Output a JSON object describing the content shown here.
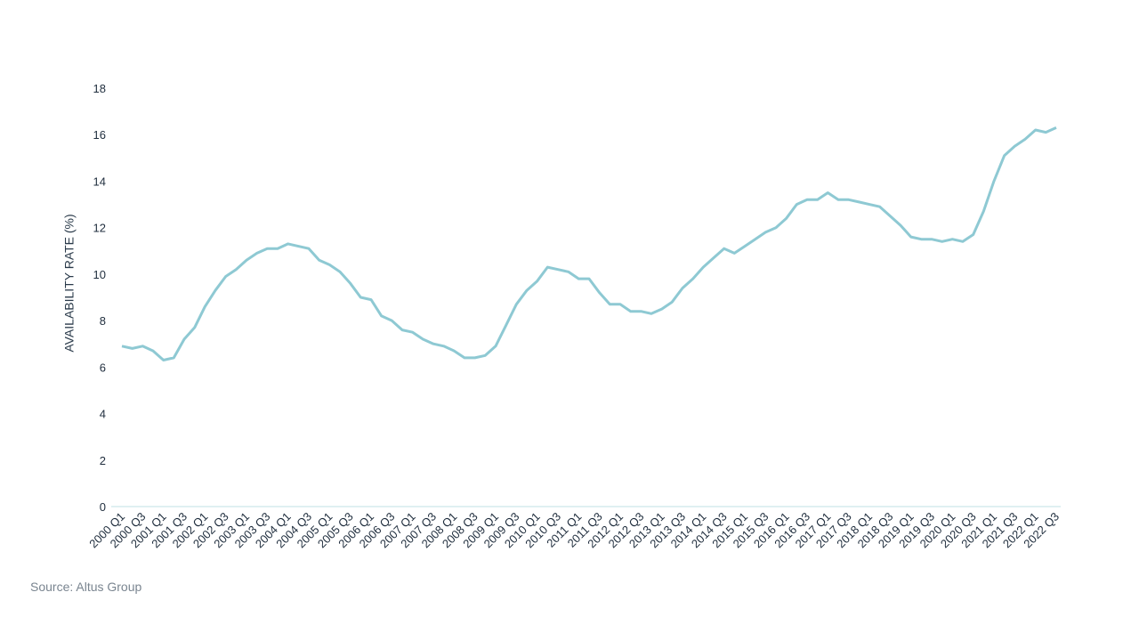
{
  "chart_data": {
    "type": "line",
    "y_label": "AVAILABILITY RATE (%)",
    "source": "Source: Altus Group",
    "color": "#8ec9d3",
    "categories": [
      "2000 Q1",
      null,
      "2000 Q3",
      null,
      "2001 Q1",
      null,
      "2001 Q3",
      null,
      "2002 Q1",
      null,
      "2002 Q3",
      null,
      "2003 Q1",
      null,
      "2003 Q3",
      null,
      "2004 Q1",
      null,
      "2004 Q3",
      null,
      "2005 Q1",
      null,
      "2005 Q3",
      null,
      "2006 Q1",
      null,
      "2006 Q3",
      null,
      "2007 Q1",
      null,
      "2007 Q3",
      null,
      "2008 Q1",
      null,
      "2008 Q3",
      null,
      "2009 Q1",
      null,
      "2009 Q3",
      null,
      "2010 Q1",
      null,
      "2010 Q3",
      null,
      "2011 Q1",
      null,
      "2011 Q3",
      null,
      "2012 Q1",
      null,
      "2012 Q3",
      null,
      "2013 Q1",
      null,
      "2013 Q3",
      null,
      "2014 Q1",
      null,
      "2014 Q3",
      null,
      "2015 Q1",
      null,
      "2015 Q3",
      null,
      "2016 Q1",
      null,
      "2016 Q3",
      null,
      "2017 Q1",
      null,
      "2017 Q3",
      null,
      "2018 Q1",
      null,
      "2018 Q3",
      null,
      "2019 Q1",
      null,
      "2019 Q3",
      null,
      "2020 Q1",
      null,
      "2020 Q3",
      null,
      "2021 Q1",
      null,
      "2021 Q3",
      null,
      "2022 Q1",
      null,
      "2022 Q3"
    ],
    "values": [
      6.9,
      6.8,
      6.9,
      6.7,
      6.3,
      6.4,
      7.2,
      7.7,
      8.6,
      9.3,
      9.9,
      10.2,
      10.6,
      10.9,
      11.1,
      11.1,
      11.3,
      11.2,
      11.1,
      10.6,
      10.4,
      10.1,
      9.6,
      9.0,
      8.9,
      8.2,
      8.0,
      7.6,
      7.5,
      7.2,
      7.0,
      6.9,
      6.7,
      6.4,
      6.4,
      6.5,
      6.9,
      7.8,
      8.7,
      9.3,
      9.7,
      10.3,
      10.2,
      10.1,
      9.8,
      9.8,
      9.2,
      8.7,
      8.7,
      8.4,
      8.4,
      8.3,
      8.5,
      8.8,
      9.4,
      9.8,
      10.3,
      10.7,
      11.1,
      10.9,
      11.2,
      11.5,
      11.8,
      12.0,
      12.4,
      13.0,
      13.2,
      13.2,
      13.5,
      13.2,
      13.2,
      13.1,
      13.0,
      12.9,
      12.5,
      12.1,
      11.6,
      11.5,
      11.5,
      11.4,
      11.5,
      11.4,
      11.7,
      12.7,
      14.0,
      15.1,
      15.5,
      15.8,
      16.2,
      16.1,
      16.3
    ],
    "ylim": [
      0,
      18
    ],
    "yticks": [
      0,
      2,
      4,
      6,
      8,
      10,
      12,
      14,
      16,
      18
    ],
    "grid": false
  }
}
